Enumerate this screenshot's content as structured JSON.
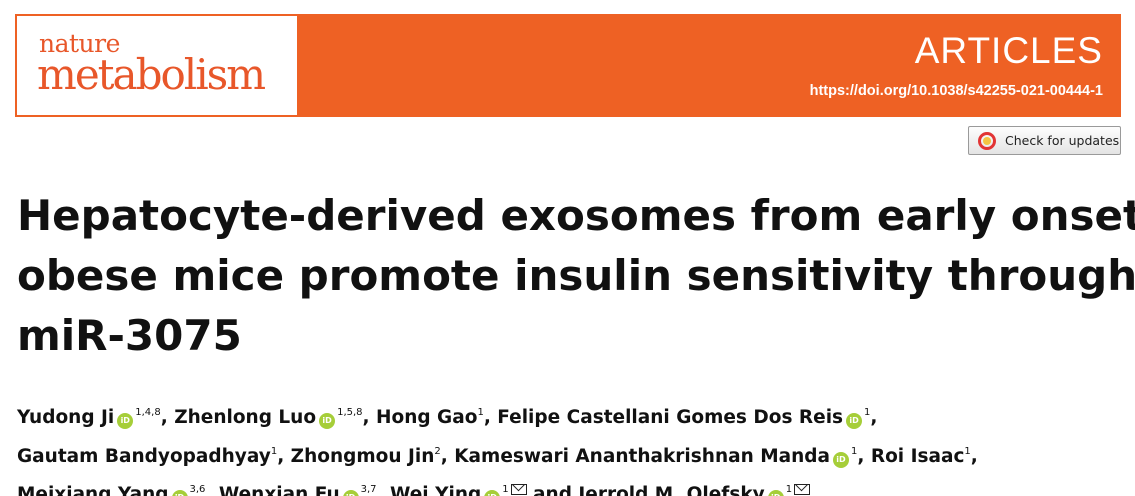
{
  "journal": {
    "logo_top": "nature",
    "logo_bottom": "metabolism"
  },
  "header": {
    "section": "ARTICLES",
    "doi": "https://doi.org/10.1038/s42255-021-00444-1"
  },
  "colors": {
    "banner": "#ee6124",
    "logo_text": "#e8572a",
    "orcid": "#a6ce39"
  },
  "updates_button": {
    "label": "Check for updates",
    "icon": "crossmark-icon"
  },
  "article": {
    "title_lines": [
      "Hepatocyte-derived exosomes from early onset",
      "obese mice promote insulin sensitivity through",
      "miR-3075"
    ]
  },
  "authors": [
    {
      "name": "Yudong Ji",
      "orcid": true,
      "sup": "1,4,8",
      "sep": ", "
    },
    {
      "name": "Zhenlong Luo",
      "orcid": true,
      "sup": "1,5,8",
      "sep": ", "
    },
    {
      "name": "Hong Gao",
      "orcid": false,
      "sup": "1",
      "sep": ", "
    },
    {
      "name": "Felipe Castellani Gomes Dos Reis",
      "orcid": true,
      "sup": "1",
      "sep": ","
    },
    {
      "name": "Gautam Bandyopadhyay",
      "orcid": false,
      "sup": "1",
      "sep": ", "
    },
    {
      "name": "Zhongmou Jin",
      "orcid": false,
      "sup": "2",
      "sep": ", "
    },
    {
      "name": "Kameswari Ananthakrishnan Manda",
      "orcid": true,
      "sup": "1",
      "sep": ", "
    },
    {
      "name": "Roi Isaac",
      "orcid": false,
      "sup": "1",
      "sep": ","
    },
    {
      "name": "Meixiang Yang",
      "orcid": true,
      "sup": "3,6",
      "sep": ", "
    },
    {
      "name": "Wenxian Fu",
      "orcid": true,
      "sup": "3,7",
      "sep": ", "
    },
    {
      "name": "Wei Ying",
      "orcid": true,
      "sup": "1",
      "mail": true,
      "sep": " and "
    },
    {
      "name": "Jerrold M. Olefsky",
      "orcid": true,
      "sup": "1",
      "mail": true,
      "sep": ""
    }
  ],
  "author_line_breaks": [
    4,
    8
  ]
}
